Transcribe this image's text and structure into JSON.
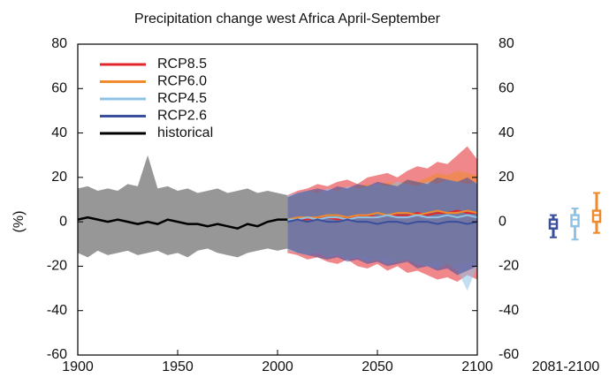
{
  "chart_data": {
    "type": "line",
    "title": "Precipitation change west Africa April-September",
    "ylabel": "(%)",
    "xlim": [
      1900,
      2100
    ],
    "xticks": [
      1900,
      1950,
      2000,
      2050,
      2100
    ],
    "ylim": [
      -60,
      80
    ],
    "yticks": [
      -60,
      -40,
      -20,
      0,
      20,
      40,
      60,
      80
    ],
    "y2lim": [
      -60,
      80
    ],
    "y2ticks": [
      -60,
      -40,
      -20,
      0,
      20,
      40,
      60,
      80
    ],
    "legend": "upper left",
    "series": [
      {
        "name": "RCP8.5",
        "color": "#e3262b",
        "x": [
          2005,
          2010,
          2015,
          2020,
          2025,
          2030,
          2035,
          2040,
          2045,
          2050,
          2055,
          2060,
          2065,
          2070,
          2075,
          2080,
          2085,
          2090,
          2095,
          2100
        ],
        "values": [
          1,
          1,
          1,
          2,
          2,
          1,
          2,
          2,
          3,
          2,
          3,
          3,
          3,
          4,
          3,
          4,
          4,
          5,
          4,
          4
        ],
        "low": [
          -14,
          -15,
          -17,
          -16,
          -18,
          -19,
          -17,
          -20,
          -21,
          -19,
          -22,
          -20,
          -23,
          -22,
          -24,
          -26,
          -25,
          -27,
          -24,
          -26
        ],
        "high": [
          12,
          14,
          15,
          17,
          16,
          18,
          19,
          17,
          20,
          21,
          22,
          20,
          23,
          25,
          24,
          27,
          26,
          30,
          34,
          28
        ]
      },
      {
        "name": "RCP6.0",
        "color": "#ef8a2d",
        "x": [
          2005,
          2010,
          2015,
          2020,
          2025,
          2030,
          2035,
          2040,
          2045,
          2050,
          2055,
          2060,
          2065,
          2070,
          2075,
          2080,
          2085,
          2090,
          2095,
          2100
        ],
        "values": [
          1,
          2,
          2,
          2,
          3,
          3,
          2,
          3,
          3,
          4,
          3,
          4,
          4,
          3,
          4,
          5,
          4,
          4,
          5,
          4
        ],
        "low": [
          -12,
          -13,
          -14,
          -13,
          -15,
          -14,
          -16,
          -15,
          -16,
          -17,
          -16,
          -18,
          -17,
          -18,
          -19,
          -18,
          -20,
          -19,
          -18,
          -19
        ],
        "high": [
          11,
          12,
          13,
          14,
          13,
          15,
          14,
          16,
          17,
          16,
          18,
          17,
          19,
          18,
          20,
          22,
          21,
          23,
          22,
          21
        ]
      },
      {
        "name": "RCP4.5",
        "color": "#8fc3e6",
        "x": [
          2005,
          2010,
          2015,
          2020,
          2025,
          2030,
          2035,
          2040,
          2045,
          2050,
          2055,
          2060,
          2065,
          2070,
          2075,
          2080,
          2085,
          2090,
          2095,
          2100
        ],
        "values": [
          1,
          1,
          2,
          1,
          2,
          2,
          1,
          2,
          2,
          2,
          3,
          2,
          2,
          3,
          2,
          2,
          3,
          2,
          3,
          2
        ],
        "low": [
          -13,
          -14,
          -15,
          -14,
          -16,
          -15,
          -17,
          -16,
          -18,
          -17,
          -19,
          -18,
          -17,
          -19,
          -20,
          -21,
          -19,
          -22,
          -31,
          -20
        ],
        "high": [
          12,
          13,
          14,
          13,
          15,
          14,
          16,
          15,
          16,
          17,
          16,
          18,
          17,
          16,
          18,
          17,
          19,
          18,
          17,
          18
        ]
      },
      {
        "name": "RCP2.6",
        "color": "#3a4e9e",
        "x": [
          2005,
          2010,
          2015,
          2020,
          2025,
          2030,
          2035,
          2040,
          2045,
          2050,
          2055,
          2060,
          2065,
          2070,
          2075,
          2080,
          2085,
          2090,
          2095,
          2100
        ],
        "values": [
          0,
          1,
          0,
          1,
          0,
          0,
          1,
          0,
          0,
          -1,
          0,
          0,
          -1,
          0,
          0,
          -1,
          0,
          0,
          -1,
          0
        ],
        "low": [
          -12,
          -14,
          -15,
          -16,
          -17,
          -16,
          -18,
          -17,
          -19,
          -18,
          -20,
          -19,
          -18,
          -21,
          -20,
          -22,
          -21,
          -24,
          -22,
          -20
        ],
        "high": [
          11,
          13,
          14,
          15,
          14,
          16,
          15,
          17,
          16,
          18,
          17,
          16,
          19,
          18,
          17,
          20,
          19,
          18,
          20,
          17
        ]
      },
      {
        "name": "historical",
        "color": "#000000",
        "range_color": "#8c8c8c",
        "x": [
          1900,
          1905,
          1910,
          1915,
          1920,
          1925,
          1930,
          1935,
          1940,
          1945,
          1950,
          1955,
          1960,
          1965,
          1970,
          1975,
          1980,
          1985,
          1990,
          1995,
          2000,
          2005
        ],
        "values": [
          1,
          2,
          1,
          0,
          1,
          0,
          -1,
          0,
          -1,
          1,
          0,
          -1,
          -1,
          -2,
          -1,
          -2,
          -3,
          -1,
          -2,
          0,
          1,
          1
        ],
        "low": [
          -14,
          -16,
          -13,
          -15,
          -14,
          -13,
          -15,
          -14,
          -13,
          -15,
          -14,
          -16,
          -13,
          -12,
          -14,
          -15,
          -16,
          -14,
          -13,
          -12,
          -13,
          -12
        ],
        "high": [
          15,
          16,
          14,
          15,
          14,
          17,
          16,
          30,
          15,
          16,
          14,
          15,
          13,
          14,
          15,
          13,
          14,
          15,
          13,
          14,
          13,
          12
        ]
      }
    ],
    "box_label": "2081-2100",
    "boxes": [
      {
        "name": "RCP2.6",
        "color": "#3a4e9e",
        "min": -7,
        "q1": -3,
        "median": -1,
        "q3": 1,
        "max": 3
      },
      {
        "name": "RCP4.5",
        "color": "#8fc3e6",
        "min": -8,
        "q1": -2,
        "median": 1,
        "q3": 3,
        "max": 6
      },
      {
        "name": "RCP6.0",
        "color": "#ef8a2d",
        "min": -5,
        "q1": 0,
        "median": 3,
        "q3": 5,
        "max": 13
      }
    ]
  }
}
